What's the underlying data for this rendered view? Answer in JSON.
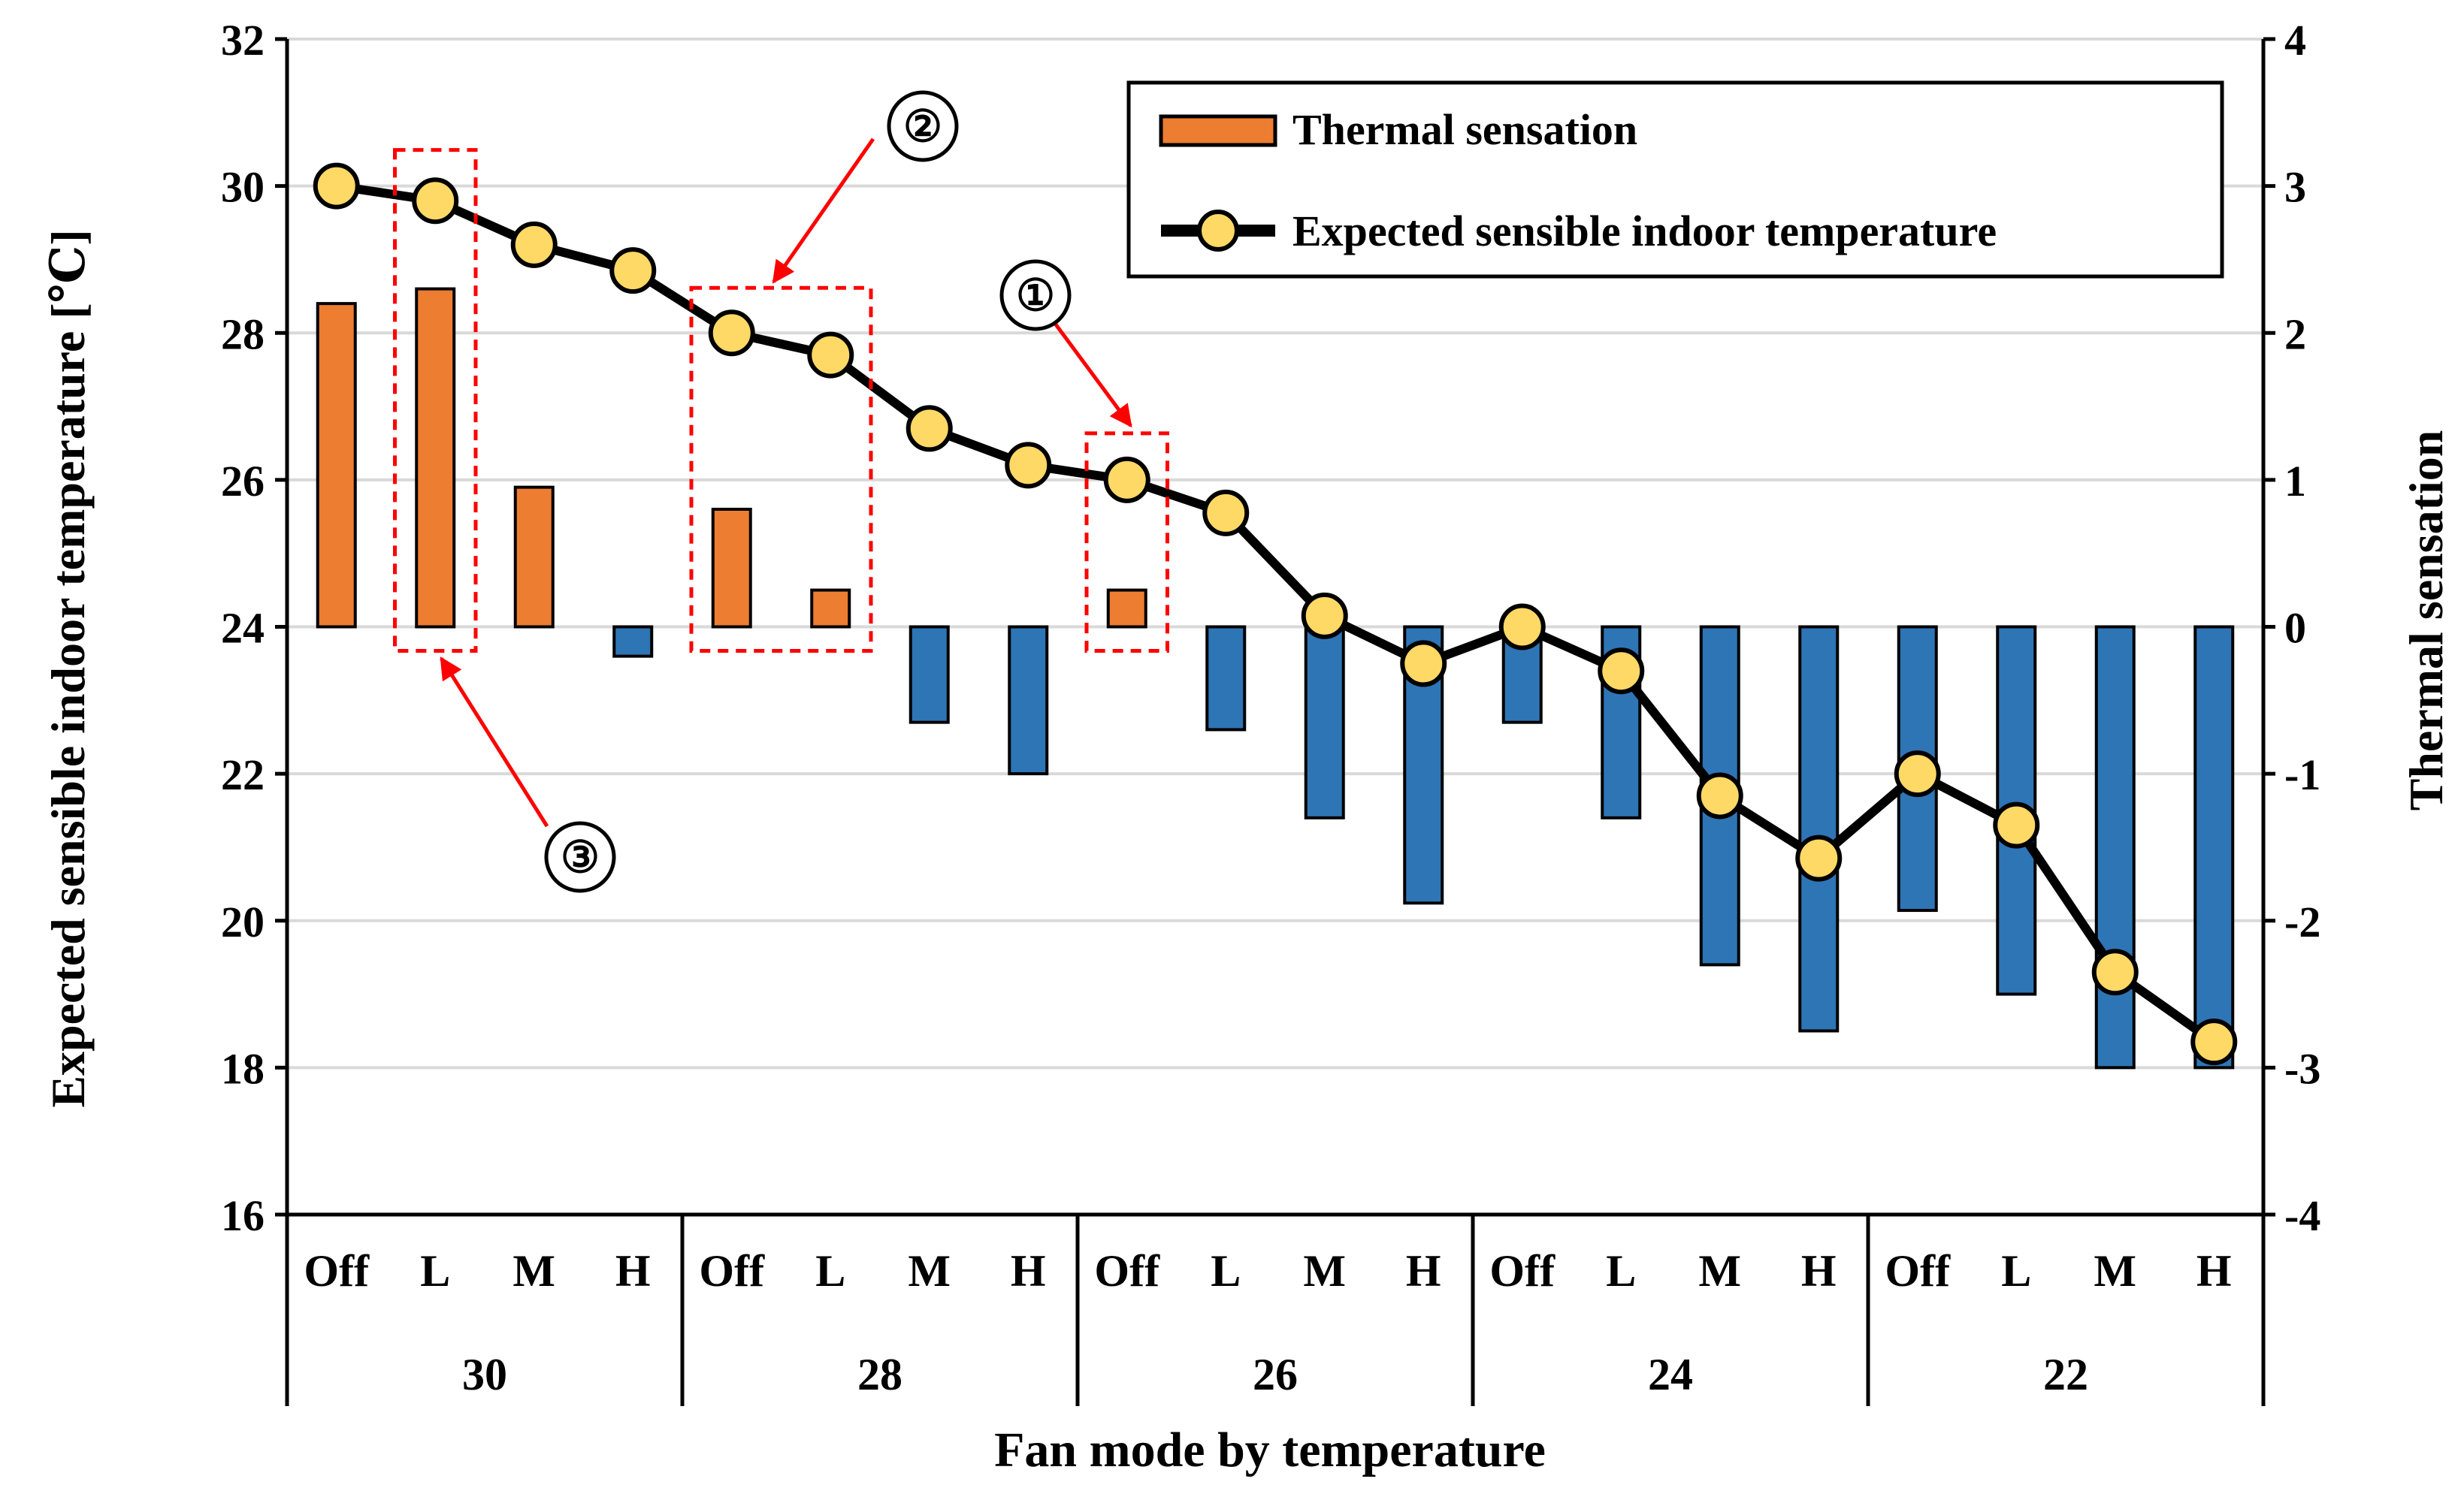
{
  "chart_data": {
    "type": "bar+line",
    "xlabel": "Fan mode by temperature",
    "ylabel_left": "Expected sensible indoor temperature [℃]",
    "ylabel_right": "Thermal sensation",
    "ylim_left": [
      16,
      32
    ],
    "ylim_right": [
      -4,
      4
    ],
    "yticks_left": [
      "16",
      "18",
      "20",
      "22",
      "24",
      "26",
      "28",
      "30",
      "32"
    ],
    "yticks_right": [
      "-4",
      "-3",
      "-2",
      "-1",
      "0",
      "1",
      "2",
      "3",
      "4"
    ],
    "grid": true,
    "groups": [
      "30",
      "28",
      "26",
      "24",
      "22"
    ],
    "modes": [
      "Off",
      "L",
      "M",
      "H"
    ],
    "categories": [
      "Off",
      "L",
      "M",
      "H",
      "Off",
      "L",
      "M",
      "H",
      "Off",
      "L",
      "M",
      "H",
      "Off",
      "L",
      "M",
      "H",
      "Off",
      "L",
      "M",
      "H"
    ],
    "series": [
      {
        "name": "Thermal sensation",
        "kind": "bar",
        "axis": "right",
        "values": [
          2.2,
          2.3,
          0.95,
          -0.2,
          0.8,
          0.25,
          -0.65,
          -1.0,
          0.25,
          -0.7,
          -1.3,
          -1.88,
          -0.65,
          -1.3,
          -2.3,
          -2.75,
          -1.93,
          -2.5,
          -3.0,
          -3.0
        ]
      },
      {
        "name": "Expected sensible indoor temperature",
        "kind": "line",
        "axis": "left",
        "values": [
          30.0,
          29.8,
          29.2,
          28.85,
          28.0,
          27.7,
          26.7,
          26.2,
          26.0,
          25.55,
          24.15,
          23.5,
          24.0,
          23.4,
          21.7,
          20.85,
          22.0,
          21.3,
          19.3,
          18.35
        ]
      }
    ],
    "legend": {
      "position": "top-right",
      "entries": [
        "Thermal sensation",
        "Expected sensible indoor temperature"
      ]
    },
    "annotations": [
      {
        "label": "①",
        "target": "26 Off"
      },
      {
        "label": "②",
        "target": "28 Off–L"
      },
      {
        "label": "③",
        "target": "30 L"
      }
    ]
  },
  "colors": {
    "positive_bar": "#ED7D31",
    "negative_bar": "#2E75B6",
    "line": "#000000",
    "marker_fill": "#FFD966",
    "annotation": "#FF0000",
    "grid": "#D9D9D9"
  }
}
